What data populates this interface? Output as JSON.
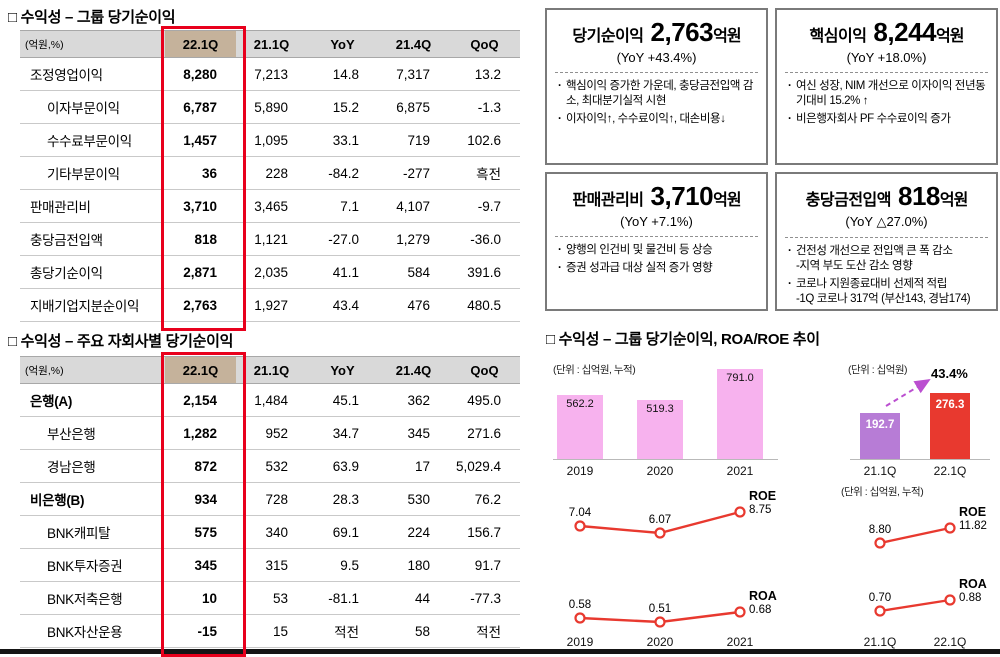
{
  "colors": {
    "highlight_red": "#e8001c",
    "header_gray": "#d9d9d9",
    "header_tan": "#c5b29b"
  },
  "group_section": {
    "title": "□ 수익성 – 그룹 당기순이익",
    "table": {
      "unit": "(억원,%)",
      "columns": [
        "22.1Q",
        "21.1Q",
        "YoY",
        "21.4Q",
        "QoQ"
      ],
      "rows": [
        {
          "label": "조정영업이익",
          "indent": false,
          "bold": false,
          "values": [
            "8,280",
            "7,213",
            "14.8",
            "7,317",
            "13.2"
          ]
        },
        {
          "label": "이자부문이익",
          "indent": true,
          "bold": false,
          "values": [
            "6,787",
            "5,890",
            "15.2",
            "6,875",
            "-1.3"
          ]
        },
        {
          "label": "수수료부문이익",
          "indent": true,
          "bold": false,
          "values": [
            "1,457",
            "1,095",
            "33.1",
            "719",
            "102.6"
          ]
        },
        {
          "label": "기타부문이익",
          "indent": true,
          "bold": false,
          "values": [
            "36",
            "228",
            "-84.2",
            "-277",
            "흑전"
          ]
        },
        {
          "label": "판매관리비",
          "indent": false,
          "bold": false,
          "values": [
            "3,710",
            "3,465",
            "7.1",
            "4,107",
            "-9.7"
          ]
        },
        {
          "label": "충당금전입액",
          "indent": false,
          "bold": false,
          "values": [
            "818",
            "1,121",
            "-27.0",
            "1,279",
            "-36.0"
          ]
        },
        {
          "label": "총당기순이익",
          "indent": false,
          "bold": false,
          "values": [
            "2,871",
            "2,035",
            "41.1",
            "584",
            "391.6"
          ]
        },
        {
          "label": "지배기업지분순이익",
          "indent": false,
          "bold": false,
          "values": [
            "2,763",
            "1,927",
            "43.4",
            "476",
            "480.5"
          ]
        }
      ]
    }
  },
  "subsidiary_section": {
    "title": "□ 수익성 – 주요 자회사별 당기순이익",
    "table": {
      "unit": "(억원,%)",
      "columns": [
        "22.1Q",
        "21.1Q",
        "YoY",
        "21.4Q",
        "QoQ"
      ],
      "rows": [
        {
          "label": "은행(A)",
          "indent": false,
          "bold": true,
          "values": [
            "2,154",
            "1,484",
            "45.1",
            "362",
            "495.0"
          ]
        },
        {
          "label": "부산은행",
          "indent": true,
          "bold": false,
          "values": [
            "1,282",
            "952",
            "34.7",
            "345",
            "271.6"
          ]
        },
        {
          "label": "경남은행",
          "indent": true,
          "bold": false,
          "values": [
            "872",
            "532",
            "63.9",
            "17",
            "5,029.4"
          ]
        },
        {
          "label": "비은행(B)",
          "indent": false,
          "bold": true,
          "values": [
            "934",
            "728",
            "28.3",
            "530",
            "76.2"
          ]
        },
        {
          "label": "BNK캐피탈",
          "indent": true,
          "bold": false,
          "values": [
            "575",
            "340",
            "69.1",
            "224",
            "156.7"
          ]
        },
        {
          "label": "BNK투자증권",
          "indent": true,
          "bold": false,
          "values": [
            "345",
            "315",
            "9.5",
            "180",
            "91.7"
          ]
        },
        {
          "label": "BNK저축은행",
          "indent": true,
          "bold": false,
          "values": [
            "10",
            "53",
            "-81.1",
            "44",
            "-77.3"
          ]
        },
        {
          "label": "BNK자산운용",
          "indent": true,
          "bold": false,
          "values": [
            "-15",
            "15",
            "적전",
            "58",
            "적전"
          ]
        }
      ]
    }
  },
  "highlight_boxes": [
    {
      "title": "당기순이익",
      "value": "2,763",
      "value_unit": "억원",
      "yoy": "(YoY +43.4%)",
      "bullets": [
        "핵심이익 증가한 가운데, 충당금전입액 감소, 최대분기실적 시현",
        "이자이익↑, 수수료이익↑, 대손비용↓"
      ]
    },
    {
      "title": "핵심이익",
      "value": "8,244",
      "value_unit": "억원",
      "yoy": "(YoY +18.0%)",
      "bullets": [
        "여신 성장, NIM 개선으로 이자이익 전년동기대비 15.2% ↑",
        "비은행자회사 PF 수수료이익 증가"
      ]
    },
    {
      "title": "판매관리비",
      "value": "3,710",
      "value_unit": "억원",
      "yoy": "(YoY +7.1%)",
      "bullets": [
        "양행의 인건비 및 물건비 등 상승",
        "증권 성과급 대상 실적 증가 영향"
      ]
    },
    {
      "title": "충당금전입액",
      "value": "818",
      "value_unit": "억원",
      "yoy": "(YoY △27.0%)",
      "bullets": [
        "건전성 개선으로 전입액 큰 폭 감소\n-지역 부도 도산 감소 영향",
        "코로나 지원종료대비 선제적 적립\n-1Q 코로나 317억 (부산143, 경남174)"
      ]
    }
  ],
  "chart_section": {
    "title": "□ 수익성 – 그룹 당기순이익, ROA/ROE 추이"
  },
  "chart_data": [
    {
      "id": "annual_net_income",
      "type": "bar",
      "unit_label": "(단위 : 십억원, 누적)",
      "categories": [
        "2019",
        "2020",
        "2021"
      ],
      "values": [
        562.2,
        519.3,
        791.0
      ],
      "bar_color": "#f7b2ee",
      "value_labels_inside": true
    },
    {
      "id": "quarterly_net_income",
      "type": "bar",
      "unit_label": "(단위 : 십억원)",
      "categories": [
        "21.1Q",
        "22.1Q"
      ],
      "values": [
        192.7,
        276.3
      ],
      "bar_colors": [
        "#b77cd6",
        "#e8392f"
      ],
      "growth_annotation": "43.4%",
      "arrow_color": "#bb4fd0"
    },
    {
      "id": "roe_annual",
      "type": "line",
      "series_label": "ROE",
      "categories": [
        "2019",
        "2020",
        "2021"
      ],
      "values": [
        7.04,
        6.07,
        8.75
      ],
      "line_color": "#e8392f"
    },
    {
      "id": "roa_annual",
      "type": "line",
      "series_label": "ROA",
      "categories": [
        "2019",
        "2020",
        "2021"
      ],
      "values": [
        0.58,
        0.51,
        0.68
      ],
      "line_color": "#e8392f"
    },
    {
      "id": "roe_quarterly",
      "type": "line",
      "unit_label": "(단위 : 십억원, 누적)",
      "series_label": "ROE",
      "categories": [
        "21.1Q",
        "22.1Q"
      ],
      "values": [
        8.8,
        11.82
      ],
      "line_color": "#e8392f"
    },
    {
      "id": "roa_quarterly",
      "type": "line",
      "series_label": "ROA",
      "categories": [
        "21.1Q",
        "22.1Q"
      ],
      "values": [
        0.7,
        0.88
      ],
      "line_color": "#e8392f"
    }
  ]
}
